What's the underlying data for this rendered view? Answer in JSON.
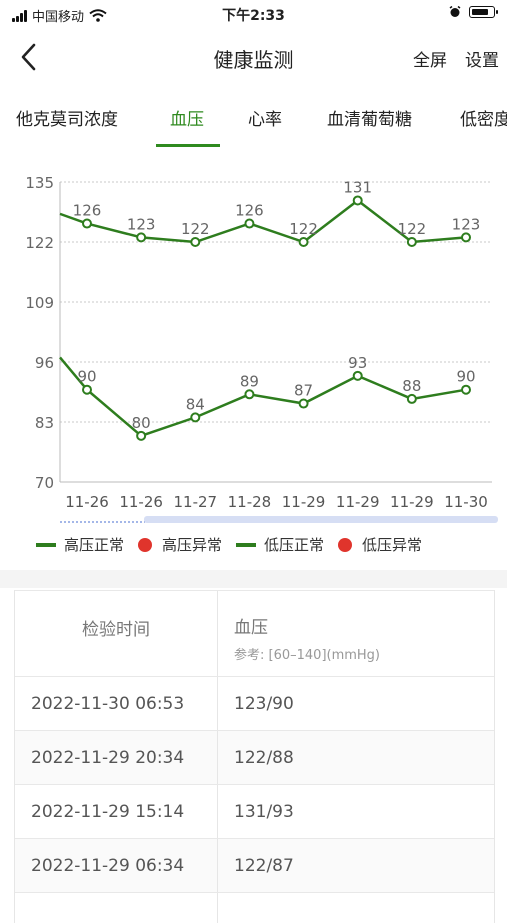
{
  "status_bar": {
    "carrier": "中国移动",
    "time": "下午2:33",
    "battery_level": 0.85
  },
  "nav": {
    "title": "健康监测",
    "fullscreen": "全屏",
    "settings": "设置"
  },
  "tabs": [
    {
      "label": "他克莫司浓度"
    },
    {
      "label": "血压",
      "active": true
    },
    {
      "label": "心率"
    },
    {
      "label": "血清葡萄糖"
    },
    {
      "label": "低密度"
    }
  ],
  "chart_data": {
    "type": "line",
    "categories": [
      "11-26",
      "11-26",
      "11-27",
      "11-28",
      "11-29",
      "11-29",
      "11-29",
      "11-30"
    ],
    "series": [
      {
        "name": "高压正常",
        "values": [
          126,
          123,
          122,
          126,
          122,
          131,
          122,
          123
        ],
        "color": "#2e7d1e"
      },
      {
        "name": "低压正常",
        "values": [
          90,
          80,
          84,
          89,
          87,
          93,
          88,
          90
        ],
        "color": "#2e7d1e"
      }
    ],
    "yticks": [
      135,
      122,
      109,
      96,
      83,
      70
    ],
    "ylim": [
      70,
      135
    ],
    "grid": true,
    "legend": [
      {
        "label": "高压正常",
        "kind": "line",
        "color": "#2e7d1e"
      },
      {
        "label": "高压异常",
        "kind": "dot",
        "color": "#e0342c"
      },
      {
        "label": "低压正常",
        "kind": "line",
        "color": "#2e7d1e"
      },
      {
        "label": "低压异常",
        "kind": "dot",
        "color": "#e0342c"
      }
    ],
    "legend_position": "bottom"
  },
  "table": {
    "headers": {
      "time": "检验时间",
      "value": "血压",
      "reference": "参考: [60–140](mmHg)"
    },
    "rows": [
      {
        "time": "2022-11-30 06:53",
        "value": "123/90"
      },
      {
        "time": "2022-11-29 20:34",
        "value": "122/88"
      },
      {
        "time": "2022-11-29 15:14",
        "value": "131/93"
      },
      {
        "time": "2022-11-29 06:34",
        "value": "122/87"
      }
    ]
  }
}
